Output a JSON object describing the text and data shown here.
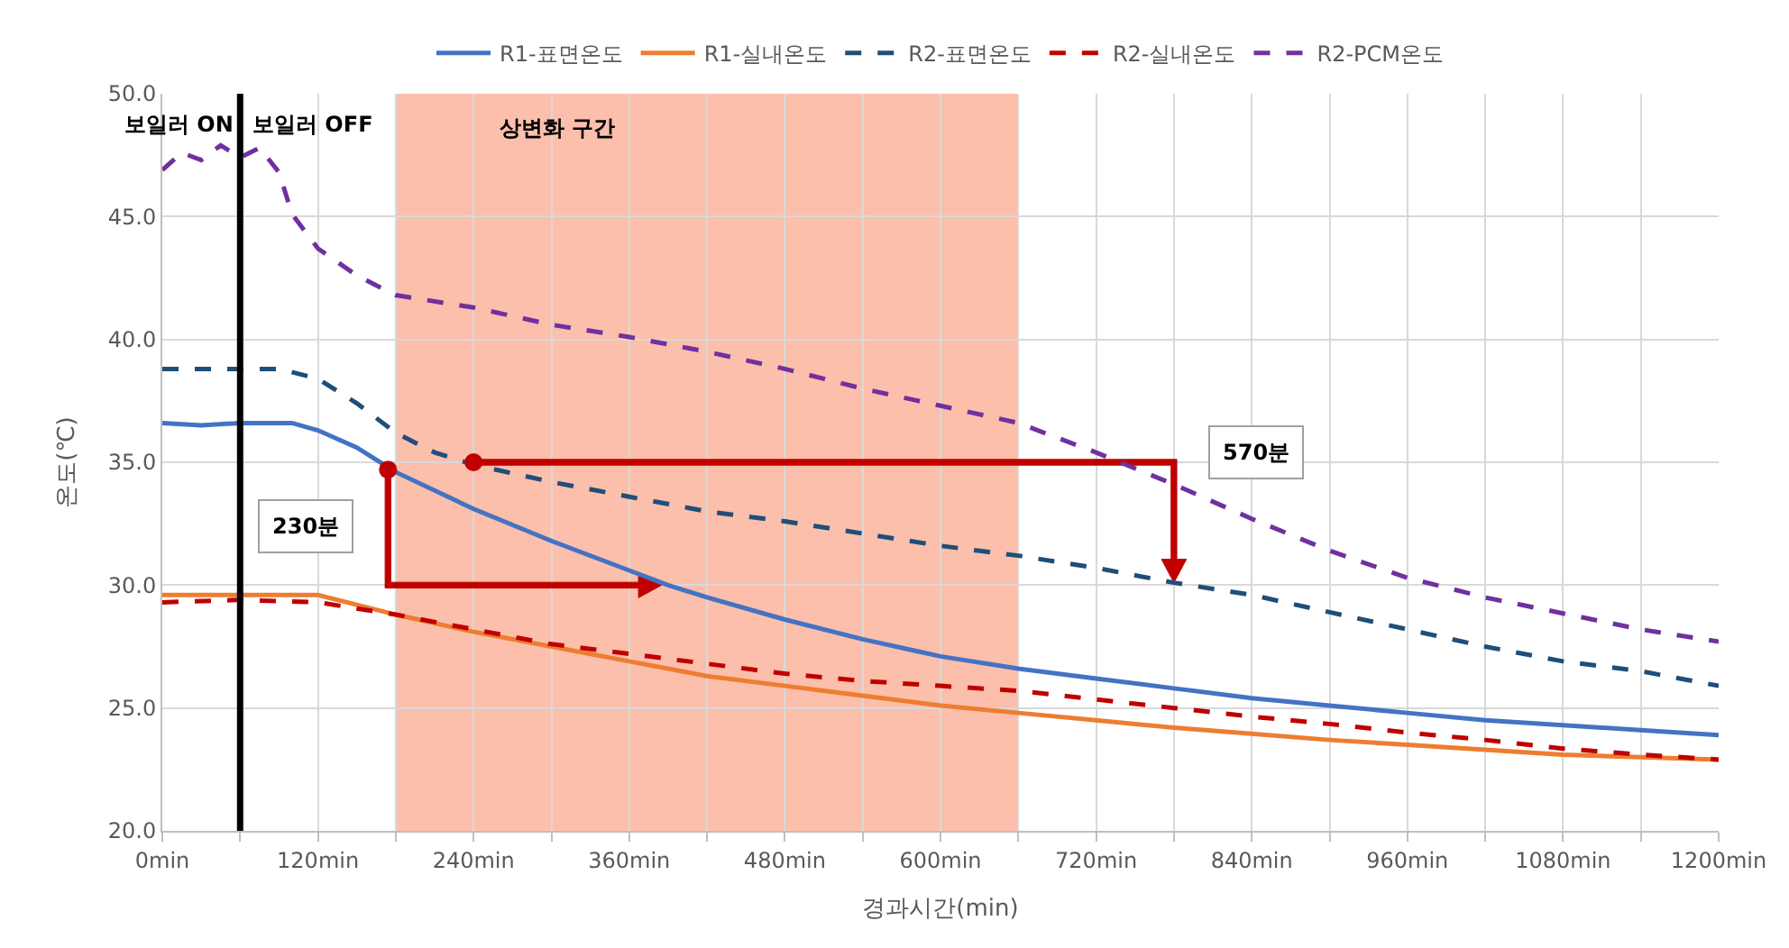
{
  "chart_data": {
    "type": "line",
    "xlabel": "경과시간(min)",
    "ylabel": "온도(℃)",
    "xlim": [
      0,
      1200
    ],
    "ylim": [
      20,
      50
    ],
    "xticks": [
      {
        "value": 0,
        "label": "0min"
      },
      {
        "value": 60,
        "label": null
      },
      {
        "value": 120,
        "label": "120min"
      },
      {
        "value": 180,
        "label": null
      },
      {
        "value": 240,
        "label": "240min"
      },
      {
        "value": 300,
        "label": null
      },
      {
        "value": 360,
        "label": "360min"
      },
      {
        "value": 420,
        "label": null
      },
      {
        "value": 480,
        "label": "480min"
      },
      {
        "value": 540,
        "label": null
      },
      {
        "value": 600,
        "label": "600min"
      },
      {
        "value": 660,
        "label": null
      },
      {
        "value": 720,
        "label": "720min"
      },
      {
        "value": 780,
        "label": null
      },
      {
        "value": 840,
        "label": "840min"
      },
      {
        "value": 900,
        "label": null
      },
      {
        "value": 960,
        "label": "960min"
      },
      {
        "value": 1020,
        "label": null
      },
      {
        "value": 1080,
        "label": "1080min"
      },
      {
        "value": 1140,
        "label": null
      },
      {
        "value": 1200,
        "label": "1200min"
      }
    ],
    "yticks": [
      {
        "value": 20,
        "label": "20.0"
      },
      {
        "value": 25,
        "label": "25.0"
      },
      {
        "value": 30,
        "label": "30.0"
      },
      {
        "value": 35,
        "label": "35.0"
      },
      {
        "value": 40,
        "label": "40.0"
      },
      {
        "value": 45,
        "label": "45.0"
      },
      {
        "value": 50,
        "label": "50.0"
      }
    ],
    "grid": true,
    "legend": "top",
    "series": [
      {
        "name": "R1-표면온도",
        "color": "#4472c4",
        "line_style": "solid",
        "x": [
          0,
          30,
          60,
          90,
          100,
          120,
          150,
          180,
          240,
          300,
          360,
          390,
          420,
          480,
          540,
          600,
          660,
          720,
          780,
          840,
          900,
          960,
          1020,
          1080,
          1140,
          1200
        ],
        "values": [
          36.6,
          36.5,
          36.6,
          36.6,
          36.6,
          36.3,
          35.6,
          34.6,
          33.1,
          31.8,
          30.6,
          30.0,
          29.5,
          28.6,
          27.8,
          27.1,
          26.6,
          26.2,
          25.8,
          25.4,
          25.1,
          24.8,
          24.5,
          24.3,
          24.1,
          23.9
        ]
      },
      {
        "name": "R1-실내온도",
        "color": "#ed7d31",
        "line_style": "solid",
        "x": [
          0,
          60,
          120,
          150,
          180,
          240,
          300,
          360,
          420,
          480,
          540,
          600,
          660,
          720,
          780,
          840,
          900,
          960,
          1020,
          1080,
          1140,
          1200
        ],
        "values": [
          29.6,
          29.6,
          29.6,
          29.2,
          28.8,
          28.1,
          27.5,
          26.9,
          26.3,
          25.9,
          25.5,
          25.1,
          24.8,
          24.5,
          24.2,
          23.95,
          23.7,
          23.5,
          23.3,
          23.1,
          23.0,
          22.9
        ]
      },
      {
        "name": "R2-표면온도",
        "color": "#1f4e79",
        "line_style": "dashed",
        "x": [
          0,
          30,
          60,
          90,
          120,
          150,
          180,
          210,
          240,
          300,
          360,
          420,
          480,
          540,
          600,
          660,
          720,
          780,
          840,
          900,
          960,
          1020,
          1080,
          1140,
          1200
        ],
        "values": [
          38.8,
          38.8,
          38.8,
          38.8,
          38.4,
          37.4,
          36.2,
          35.4,
          34.9,
          34.2,
          33.6,
          33.0,
          32.6,
          32.1,
          31.6,
          31.2,
          30.7,
          30.1,
          29.6,
          28.9,
          28.2,
          27.5,
          26.9,
          26.5,
          25.9
        ]
      },
      {
        "name": "R2-실내온도",
        "color": "#c00000",
        "line_style": "dashed",
        "x": [
          0,
          60,
          120,
          180,
          240,
          300,
          360,
          420,
          480,
          540,
          600,
          660,
          720,
          780,
          840,
          900,
          960,
          1020,
          1080,
          1140,
          1200
        ],
        "values": [
          29.3,
          29.4,
          29.3,
          28.8,
          28.2,
          27.6,
          27.2,
          26.8,
          26.4,
          26.1,
          25.9,
          25.7,
          25.35,
          25.0,
          24.65,
          24.35,
          24.0,
          23.7,
          23.35,
          23.1,
          22.9
        ]
      },
      {
        "name": "R2-PCM온도",
        "color": "#7030a0",
        "line_style": "dashed",
        "x": [
          0,
          15,
          30,
          45,
          60,
          75,
          90,
          100,
          120,
          150,
          180,
          240,
          300,
          360,
          420,
          480,
          540,
          600,
          660,
          720,
          780,
          840,
          900,
          960,
          1020,
          1080,
          1140,
          1200
        ],
        "values": [
          46.9,
          47.6,
          47.3,
          47.9,
          47.4,
          47.8,
          46.8,
          45.1,
          43.7,
          42.6,
          41.8,
          41.3,
          40.6,
          40.1,
          39.5,
          38.8,
          38.0,
          37.3,
          36.6,
          35.4,
          34.1,
          32.7,
          31.4,
          30.3,
          29.5,
          28.85,
          28.2,
          27.7
        ]
      },
      {
        "type": "scatter",
        "marker": "circle",
        "color": "#c00000",
        "x": [
          174,
          240
        ],
        "values": [
          34.7,
          35.0
        ]
      }
    ],
    "ref_lines": [
      {
        "axis": "x",
        "value": 60,
        "color": "#000000",
        "line_style": "solid"
      }
    ],
    "bands": [
      {
        "axis": "x",
        "from": 180,
        "to": 660,
        "color": "#fbbfab",
        "label": "상변화 구간"
      }
    ],
    "annotations": [
      "보일러 ON",
      "보일러 OFF",
      "230분",
      "570분"
    ]
  }
}
